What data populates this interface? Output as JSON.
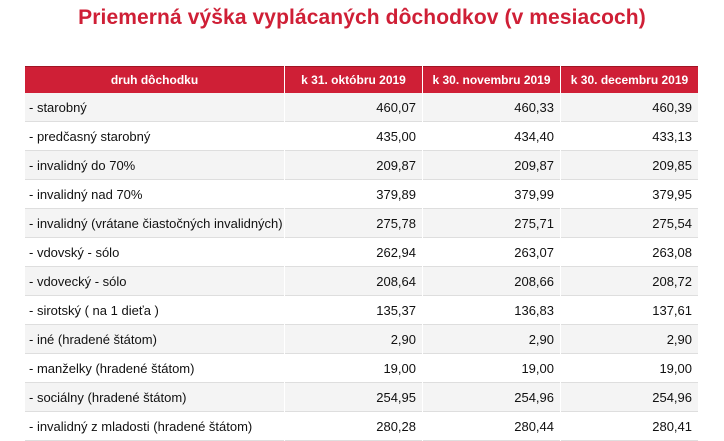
{
  "title": "Priemerná výška vyplácaných dôchodkov (v mesiacoch)",
  "header": {
    "col0": "druh dôchodku",
    "col1": "k 31. októbru 2019",
    "col2": "k 30. novembru 2019",
    "col3": "k 30. decembru 2019"
  },
  "rows": [
    {
      "label": "- starobný",
      "oct": "460,07",
      "nov": "460,33",
      "dec": "460,39"
    },
    {
      "label": "- predčasný starobný",
      "oct": "435,00",
      "nov": "434,40",
      "dec": "433,13"
    },
    {
      "label": "- invalidný do 70%",
      "oct": "209,87",
      "nov": "209,87",
      "dec": "209,85"
    },
    {
      "label": "- invalidný nad 70%",
      "oct": "379,89",
      "nov": "379,99",
      "dec": "379,95"
    },
    {
      "label": "- invalidný  (vrátane čiastočných invalidných)",
      "oct": "275,78",
      "nov": "275,71",
      "dec": "275,54"
    },
    {
      "label": "- vdovský - sólo",
      "oct": "262,94",
      "nov": "263,07",
      "dec": "263,08"
    },
    {
      "label": "- vdovecký - sólo",
      "oct": "208,64",
      "nov": "208,66",
      "dec": "208,72"
    },
    {
      "label": "- sirotský  ( na 1 dieťa )",
      "oct": "135,37",
      "nov": "136,83",
      "dec": "137,61"
    },
    {
      "label": "- iné (hradené štátom)",
      "oct": "2,90",
      "nov": "2,90",
      "dec": "2,90"
    },
    {
      "label": "- manželky (hradené štátom)",
      "oct": "19,00",
      "nov": "19,00",
      "dec": "19,00"
    },
    {
      "label": "- sociálny (hradené štátom)",
      "oct": "254,95",
      "nov": "254,96",
      "dec": "254,96"
    },
    {
      "label": "- invalidný z mladosti (hradené štátom)",
      "oct": "280,28",
      "nov": "280,44",
      "dec": "280,41"
    }
  ]
}
